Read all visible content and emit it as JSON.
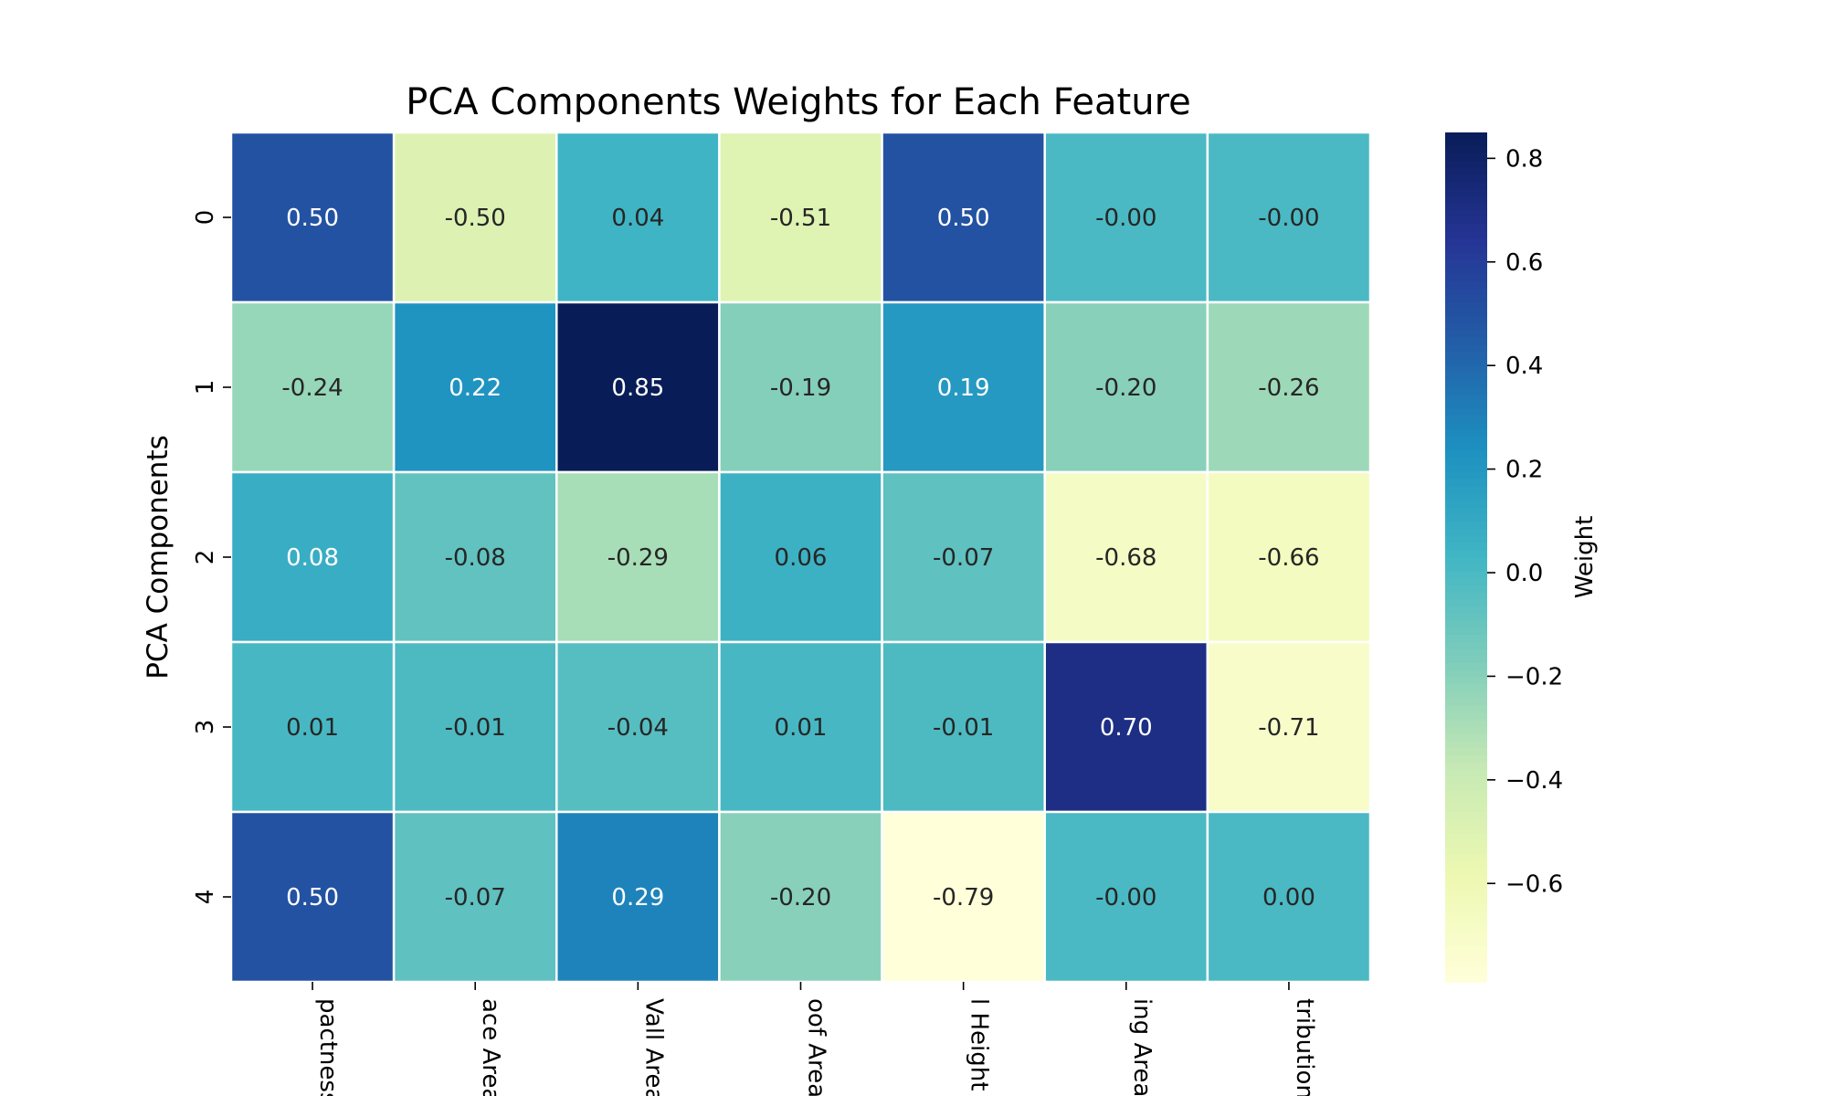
{
  "chart_data": {
    "type": "heatmap",
    "title": "PCA Components Weights for Each Feature",
    "ylabel": "PCA Components",
    "xlabel": "",
    "rows": [
      "0",
      "1",
      "2",
      "3",
      "4"
    ],
    "columns": [
      "pactness",
      "ace Area",
      "Vall Area",
      "oof Area",
      "l Height",
      "ing Area",
      "tribution"
    ],
    "values": [
      [
        0.5,
        -0.5,
        0.04,
        -0.51,
        0.5,
        -0.0,
        -0.0
      ],
      [
        -0.24,
        0.22,
        0.85,
        -0.19,
        0.19,
        -0.2,
        -0.26
      ],
      [
        0.08,
        -0.08,
        -0.29,
        0.06,
        -0.07,
        -0.68,
        -0.66
      ],
      [
        0.01,
        -0.01,
        -0.04,
        0.01,
        -0.01,
        0.7,
        -0.71
      ],
      [
        0.5,
        -0.07,
        0.29,
        -0.2,
        -0.79,
        -0.0,
        0.0
      ]
    ],
    "value_labels": [
      [
        "0.50",
        "-0.50",
        "0.04",
        "-0.51",
        "0.50",
        "-0.00",
        "-0.00"
      ],
      [
        "-0.24",
        "0.22",
        "0.85",
        "-0.19",
        "0.19",
        "-0.20",
        "-0.26"
      ],
      [
        "0.08",
        "-0.08",
        "-0.29",
        "0.06",
        "-0.07",
        "-0.68",
        "-0.66"
      ],
      [
        "0.01",
        "-0.01",
        "-0.04",
        "0.01",
        "-0.01",
        "0.70",
        "-0.71"
      ],
      [
        "0.50",
        "-0.07",
        "0.29",
        "-0.20",
        "-0.79",
        "-0.00",
        "0.00"
      ]
    ],
    "colormap": "YlGnBu",
    "vmin": -0.79,
    "vmax": 0.85,
    "colorbar": {
      "label": "Weight",
      "ticks": [
        0.8,
        0.6,
        0.4,
        0.2,
        0.0,
        -0.2,
        -0.4,
        -0.6
      ],
      "tick_labels": [
        "0.8",
        "0.6",
        "0.4",
        "0.2",
        "0.0",
        "−0.2",
        "−0.4",
        "−0.6"
      ]
    }
  }
}
